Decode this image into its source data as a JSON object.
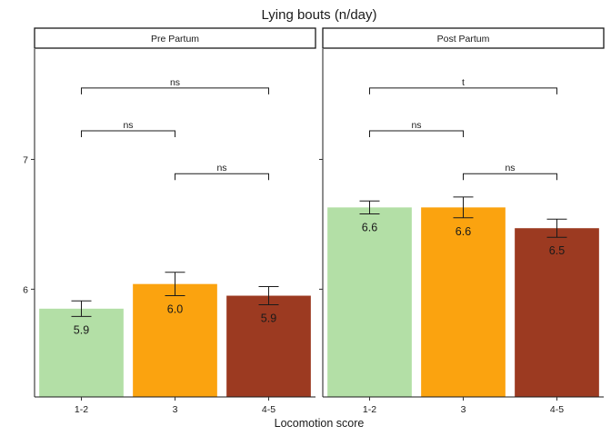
{
  "chart_data": {
    "type": "bar",
    "title": "Lying bouts (n/day)",
    "xlabel": "Locomotion score",
    "ylabel": "",
    "ylim": [
      5.17,
      7.85
    ],
    "yticks": [
      6,
      7
    ],
    "categories": [
      "1-2",
      "3",
      "4-5"
    ],
    "colors": [
      "#b3dfa6",
      "#fba30f",
      "#9c3a21"
    ],
    "panels": [
      {
        "strip": "Pre Partum",
        "values": [
          5.85,
          6.04,
          5.95
        ],
        "errors": [
          0.06,
          0.09,
          0.07
        ],
        "labels": [
          "5.9",
          "6.0",
          "5.9"
        ],
        "brackets": [
          {
            "from": 0,
            "to": 2,
            "y": 7.55,
            "label": "ns"
          },
          {
            "from": 0,
            "to": 1,
            "y": 7.22,
            "label": "ns"
          },
          {
            "from": 1,
            "to": 2,
            "y": 6.89,
            "label": "ns"
          }
        ]
      },
      {
        "strip": "Post Partum",
        "values": [
          6.63,
          6.63,
          6.47
        ],
        "errors": [
          0.05,
          0.08,
          0.07
        ],
        "labels": [
          "6.6",
          "6.6",
          "6.5"
        ],
        "brackets": [
          {
            "from": 0,
            "to": 2,
            "y": 7.55,
            "label": "t"
          },
          {
            "from": 0,
            "to": 1,
            "y": 7.22,
            "label": "ns"
          },
          {
            "from": 1,
            "to": 2,
            "y": 6.89,
            "label": "ns"
          }
        ]
      }
    ]
  }
}
